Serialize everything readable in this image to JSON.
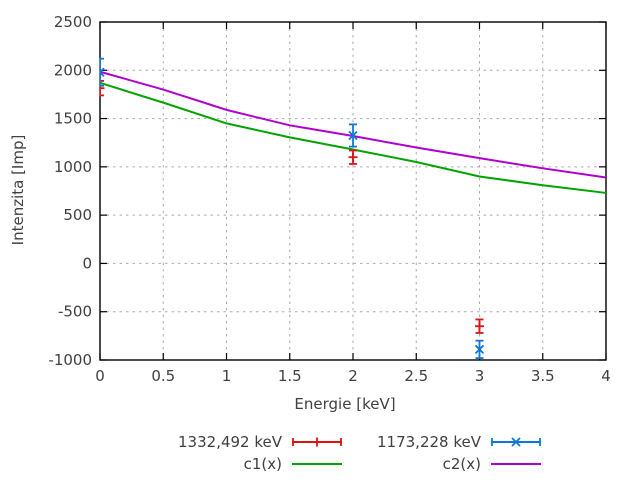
{
  "chart_data": {
    "type": "scatter",
    "title": "",
    "xlabel": "Energie [keV]",
    "ylabel": "Intenzita [Imp]",
    "xlim": [
      0,
      4
    ],
    "ylim": [
      -1000,
      2500
    ],
    "grid": true,
    "legend_position": "below-plot, two columns",
    "x_ticks": [
      0,
      0.5,
      1,
      1.5,
      2,
      2.5,
      3,
      3.5,
      4
    ],
    "x_tick_labels": [
      "0",
      "0.5",
      "1",
      "1.5",
      "2",
      "2.5",
      "3",
      "3.5",
      "4"
    ],
    "y_ticks": [
      2500,
      2000,
      1500,
      1000,
      500,
      0,
      -500,
      -1000
    ],
    "y_tick_labels": [
      "2500",
      "2000",
      "1500",
      "1000",
      "500",
      "0",
      "-500",
      "-1000"
    ],
    "axis_color": "#000000",
    "text_color": "#404040",
    "grid_color": "#ababab",
    "series": [
      {
        "name": "1332,492 keV",
        "type": "yerrorbars",
        "marker": "plus",
        "color": "#e01212",
        "points": [
          {
            "x": 0,
            "y": 1815,
            "y_low": 1740,
            "y_high": 1890
          },
          {
            "x": 2,
            "y": 1100,
            "y_low": 1030,
            "y_high": 1170
          },
          {
            "x": 3,
            "y": -650,
            "y_low": -720,
            "y_high": -580
          }
        ]
      },
      {
        "name": "1173,228 keV",
        "type": "yerrorbars",
        "marker": "cross",
        "color": "#0e76d6",
        "points": [
          {
            "x": 0,
            "y": 1980,
            "y_low": 1840,
            "y_high": 2120
          },
          {
            "x": 2,
            "y": 1325,
            "y_low": 1210,
            "y_high": 1440
          },
          {
            "x": 3,
            "y": -890,
            "y_low": -980,
            "y_high": -800
          }
        ]
      },
      {
        "name": "c1(x)",
        "type": "line",
        "color": "#00a400",
        "x": [
          0,
          0.5,
          1,
          1.5,
          2,
          2.5,
          3,
          3.5,
          4
        ],
        "y": [
          1870,
          1665,
          1450,
          1305,
          1180,
          1050,
          900,
          810,
          730
        ]
      },
      {
        "name": "c2(x)",
        "type": "line",
        "color": "#b000d0",
        "x": [
          0,
          0.5,
          1,
          1.5,
          2,
          2.5,
          3,
          3.5,
          4
        ],
        "y": [
          1985,
          1800,
          1590,
          1430,
          1320,
          1200,
          1090,
          985,
          890
        ]
      }
    ]
  }
}
